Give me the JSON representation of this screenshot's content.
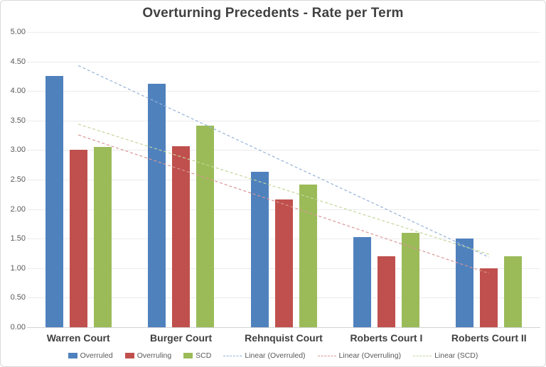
{
  "chart_data": {
    "type": "bar",
    "title": "Overturning Precedents - Rate per Term",
    "categories": [
      "Warren Court",
      "Burger Court",
      "Rehnquist Court",
      "Roberts Court I",
      "Roberts Court II"
    ],
    "series": [
      {
        "name": "Overruled",
        "color": "#4F81BD",
        "trend_color": "#95B3D7",
        "values": [
          4.26,
          4.12,
          2.63,
          1.53,
          1.5
        ]
      },
      {
        "name": "Overruling",
        "color": "#C0504D",
        "trend_color": "#D99694",
        "values": [
          3.0,
          3.06,
          2.16,
          1.2,
          1.0
        ]
      },
      {
        "name": "SCD",
        "color": "#9BBB59",
        "trend_color": "#C3D69B",
        "values": [
          3.05,
          3.41,
          2.42,
          1.6,
          1.2
        ]
      }
    ],
    "trendlines": [
      {
        "label": "Linear (Overruled)",
        "series": "Overruled",
        "type": "linear"
      },
      {
        "label": "Linear (Overruling)",
        "series": "Overruling",
        "type": "linear"
      },
      {
        "label": "Linear (SCD)",
        "series": "SCD",
        "type": "linear"
      }
    ],
    "y_axis": {
      "min": 0,
      "max": 5,
      "tick_step": 0.5,
      "tick_labels": [
        "5.00",
        "4.50",
        "4.00",
        "3.50",
        "3.00",
        "2.50",
        "2.00",
        "1.50",
        "1.00",
        "0.50",
        "0.00"
      ]
    },
    "grid": true,
    "legend_position": "bottom",
    "legend": [
      {
        "label": "Overruled",
        "swatch": "square",
        "color": "#4F81BD"
      },
      {
        "label": "Overruling",
        "swatch": "square",
        "color": "#C0504D"
      },
      {
        "label": "SCD",
        "swatch": "square",
        "color": "#9BBB59"
      },
      {
        "label": "Linear (Overruled)",
        "swatch": "dash",
        "color": "#95B3D7"
      },
      {
        "label": "Linear (Overruling)",
        "swatch": "dash",
        "color": "#D99694"
      },
      {
        "label": "Linear (SCD)",
        "swatch": "dash",
        "color": "#C3D69B"
      }
    ]
  }
}
